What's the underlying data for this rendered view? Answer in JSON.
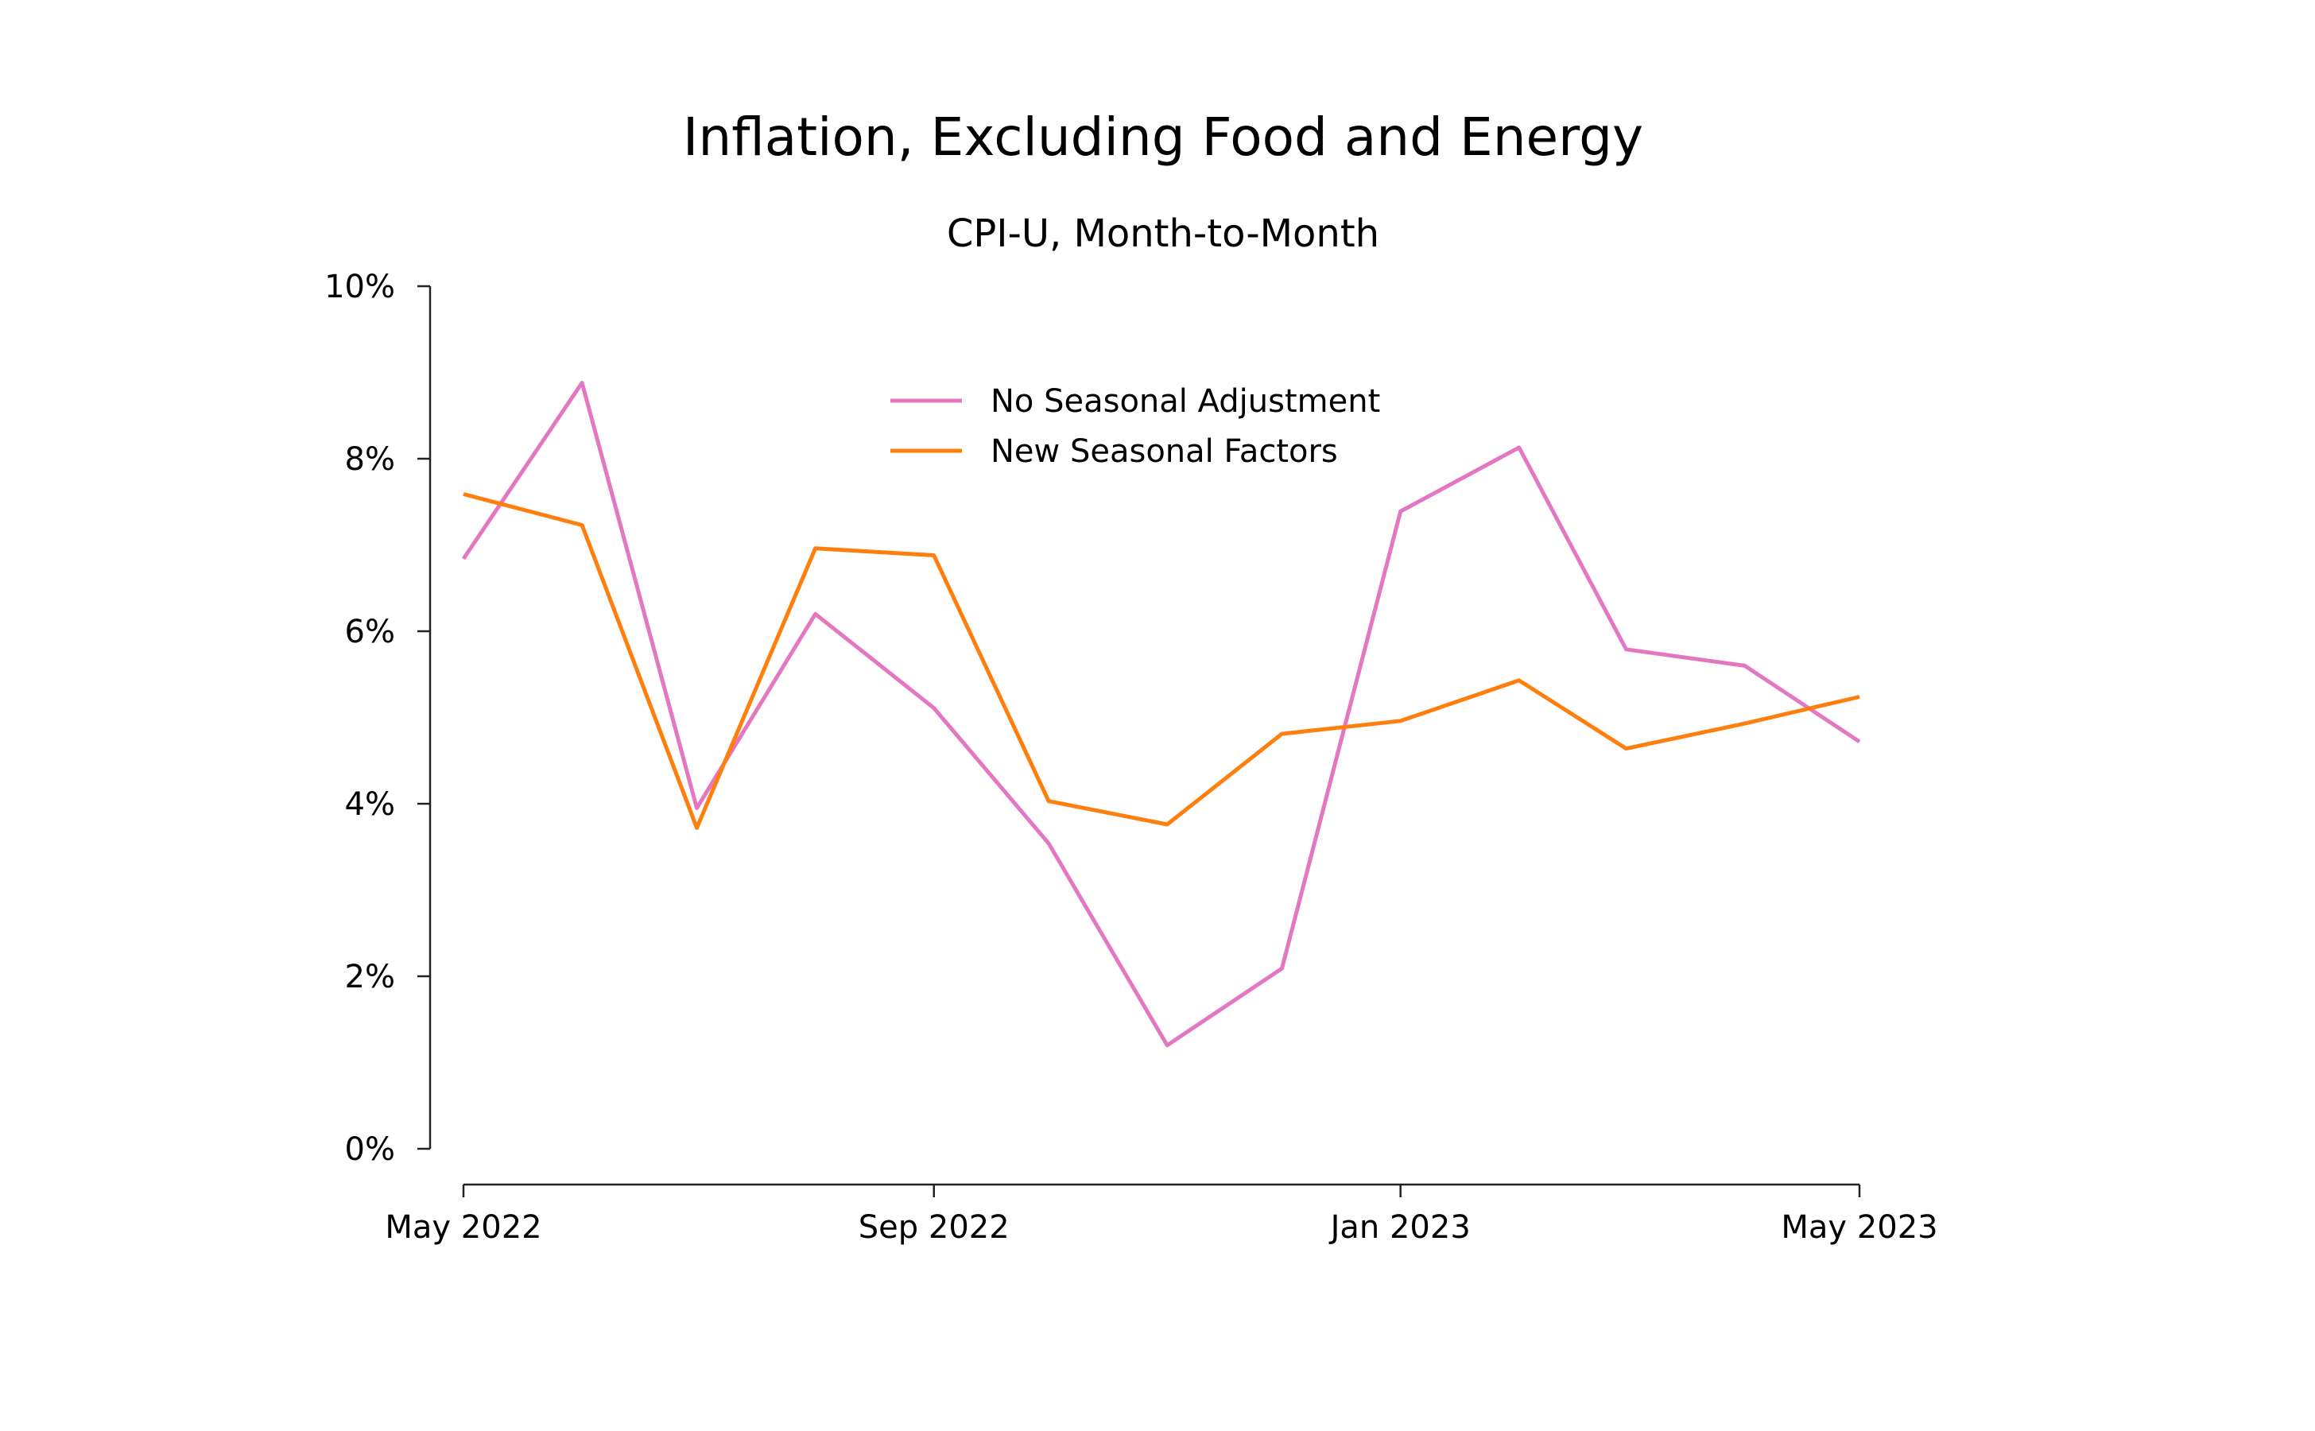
{
  "chart_data": {
    "type": "line",
    "title": "Inflation, Excluding Food and Energy",
    "subtitle": "CPI-U, Month-to-Month",
    "xlabel": "",
    "ylabel": "",
    "x": [
      "2022-05",
      "2022-06",
      "2022-07",
      "2022-08",
      "2022-09",
      "2022-10",
      "2022-11",
      "2022-12",
      "2023-01",
      "2023-02",
      "2023-03",
      "2023-04",
      "2023-05"
    ],
    "x_ticks": [
      {
        "date": "2022-05",
        "label": "May 2022"
      },
      {
        "date": "2022-09",
        "label": "Sep 2022"
      },
      {
        "date": "2023-01",
        "label": "Jan 2023"
      },
      {
        "date": "2023-05",
        "label": "May 2023"
      }
    ],
    "y_ticks": [
      {
        "value": 0,
        "label": "0%"
      },
      {
        "value": 2,
        "label": "2%"
      },
      {
        "value": 4,
        "label": "4%"
      },
      {
        "value": 6,
        "label": "6%"
      },
      {
        "value": 8,
        "label": "8%"
      },
      {
        "value": 10,
        "label": "10%"
      }
    ],
    "ylim": [
      0,
      10
    ],
    "grid": false,
    "legend_position": "top-center",
    "series": [
      {
        "name": "No Seasonal Adjustment",
        "color": "#e377c2",
        "values": [
          6.84,
          8.88,
          3.95,
          6.2,
          5.11,
          3.54,
          1.2,
          2.09,
          7.39,
          8.13,
          5.79,
          5.6,
          4.72
        ]
      },
      {
        "name": "New Seasonal Factors",
        "color": "#ff7f0e",
        "values": [
          7.59,
          7.23,
          3.72,
          6.96,
          6.88,
          4.03,
          3.76,
          4.81,
          4.96,
          5.43,
          4.64,
          4.93,
          5.24
        ]
      }
    ]
  }
}
